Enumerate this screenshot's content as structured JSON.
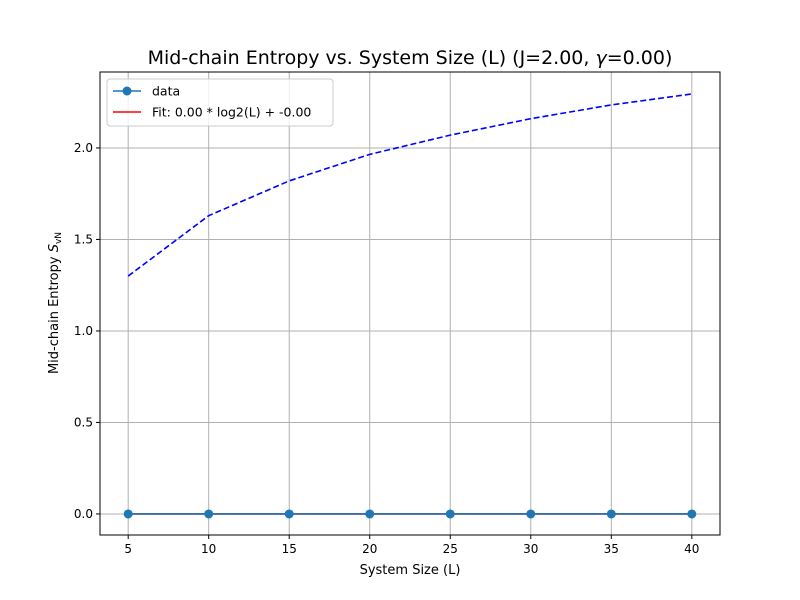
{
  "chart_data": {
    "type": "line",
    "title": "Mid-chain Entropy vs. System Size (L) (J=2.00, γ=0.00)",
    "title_parts": {
      "prefix": "Mid-chain Entropy vs. System Size (L) (J=2.00, ",
      "gamma": "γ",
      "suffix": "=0.00)"
    },
    "xlabel": "System Size (L)",
    "ylabel": "Mid-chain Entropy S_vN",
    "ylabel_parts": {
      "main": "Mid-chain Entropy ",
      "sym": "S",
      "sub": "vN"
    },
    "x": [
      5,
      10,
      15,
      20,
      25,
      30,
      35,
      40
    ],
    "xlim": [
      3.25,
      41.75
    ],
    "ylim": [
      -0.115,
      2.415
    ],
    "x_ticks": [
      5,
      10,
      15,
      20,
      25,
      30,
      35,
      40
    ],
    "y_ticks": [
      0.0,
      0.5,
      1.0,
      1.5,
      2.0
    ],
    "grid": true,
    "legend_position": "top-left",
    "series": [
      {
        "name": "data",
        "style": "line-marker",
        "color": "#1f77b4",
        "values": [
          0,
          0,
          0,
          0,
          0,
          0,
          0,
          0
        ]
      },
      {
        "name": "Fit: 0.00 * log2(L) + -0.00",
        "style": "solid",
        "color": "#ff0000",
        "values": [
          0,
          0,
          0,
          0,
          0,
          0,
          0,
          0
        ]
      },
      {
        "name": "",
        "style": "dashed",
        "color": "#0000ff",
        "values": [
          1.3,
          1.63,
          1.82,
          1.965,
          2.07,
          2.16,
          2.235,
          2.295
        ]
      }
    ]
  }
}
